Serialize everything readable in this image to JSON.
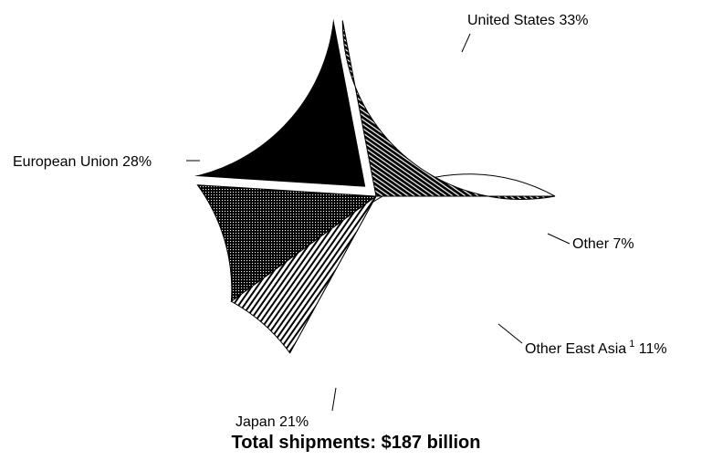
{
  "chart_data": {
    "type": "pie",
    "title": "",
    "slices": [
      {
        "label": "United States",
        "value": 33,
        "value_label": "33%",
        "fill": "white",
        "exploded": false
      },
      {
        "label": "Other",
        "value": 7,
        "value_label": "7%",
        "fill": "diag-fine",
        "exploded": false
      },
      {
        "label": "Other East Asia",
        "footnote": "1",
        "value": 11,
        "value_label": "11%",
        "fill": "dots",
        "exploded": false
      },
      {
        "label": "Japan",
        "value": 21,
        "value_label": "21%",
        "fill": "black",
        "exploded": true
      },
      {
        "label": "European Union",
        "value": 28,
        "value_label": "28%",
        "fill": "hatch-dense",
        "exploded": false
      }
    ],
    "footer": "Total shipments: $187 billion"
  },
  "colors": {
    "stroke": "#000000",
    "background": "#ffffff"
  }
}
